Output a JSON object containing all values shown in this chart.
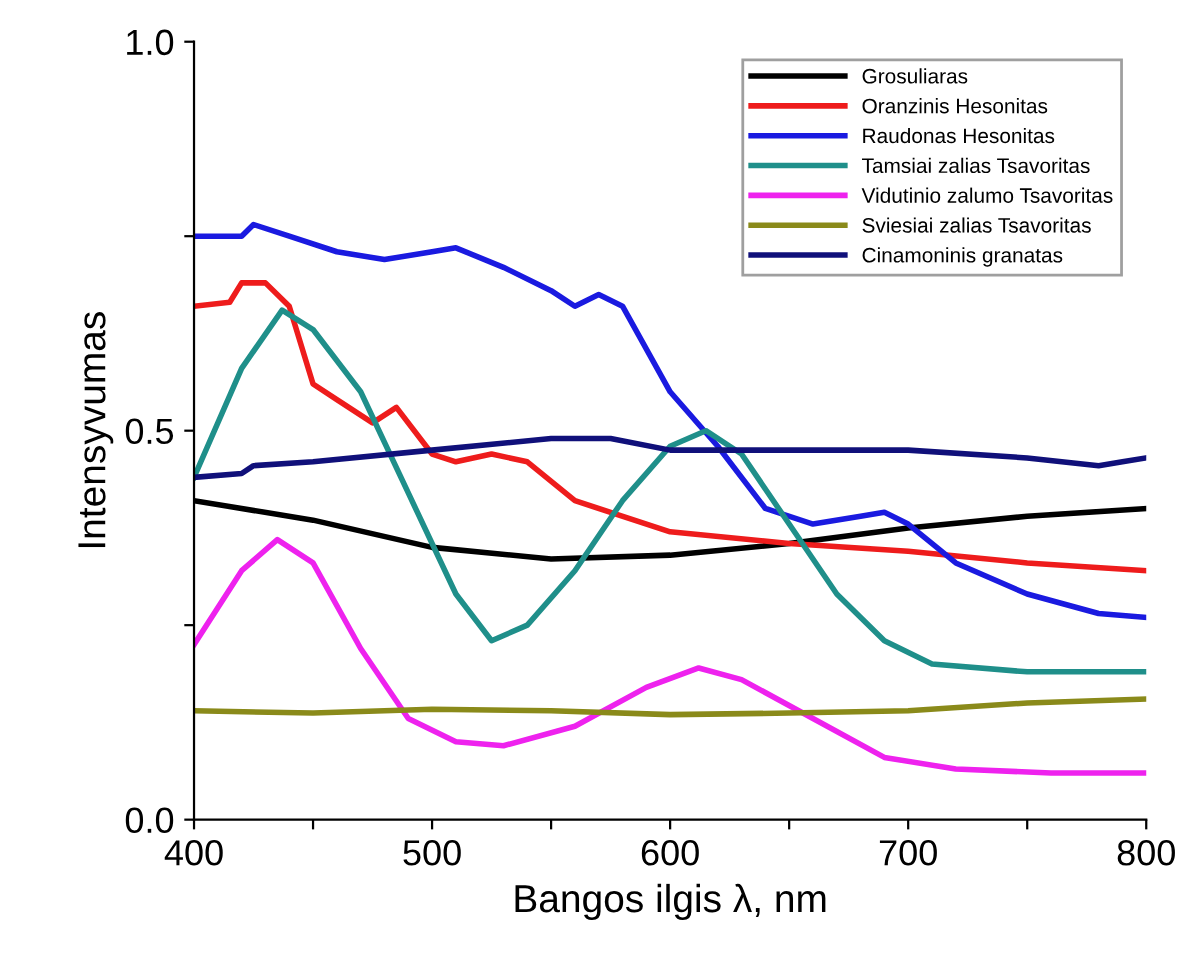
{
  "chart_data": {
    "type": "line",
    "xlabel": "Bangos ilgis λ, nm",
    "ylabel": "Intensyvumas",
    "xlim": [
      400,
      800
    ],
    "xticks": [
      400,
      {
        "value": 450,
        "label": null
      },
      500,
      {
        "value": 550,
        "label": null
      },
      600,
      {
        "value": 650,
        "label": null
      },
      700,
      {
        "value": 750,
        "label": null
      },
      800
    ],
    "ylim": [
      0,
      1
    ],
    "yticks": [
      {
        "value": 0,
        "label": "0.0"
      },
      {
        "value": 0.25,
        "label": null
      },
      {
        "value": 0.5,
        "label": "0.5"
      },
      {
        "value": 0.75,
        "label": null
      },
      {
        "value": 1,
        "label": "1.0"
      }
    ],
    "grid": false,
    "legend": "top right",
    "marker": "none",
    "line_style": "solid",
    "series": [
      {
        "name": "Grosuliaras",
        "color": "#000000",
        "x": [
          400,
          450,
          500,
          550,
          600,
          650,
          700,
          750,
          800
        ],
        "values": [
          0.41,
          0.385,
          0.35,
          0.335,
          0.34,
          0.355,
          0.375,
          0.39,
          0.4
        ]
      },
      {
        "name": "Oranzinis Hesonitas",
        "color": "#ee1c1c",
        "x": [
          400,
          415,
          420,
          430,
          440,
          450,
          460,
          475,
          485,
          500,
          510,
          525,
          540,
          560,
          600,
          650,
          700,
          750,
          800
        ],
        "values": [
          0.66,
          0.665,
          0.69,
          0.69,
          0.66,
          0.56,
          0.54,
          0.51,
          0.53,
          0.47,
          0.46,
          0.47,
          0.46,
          0.41,
          0.37,
          0.355,
          0.345,
          0.33,
          0.32
        ]
      },
      {
        "name": "Raudonas Hesonitas",
        "color": "#1a1ae0",
        "x": [
          400,
          420,
          425,
          440,
          460,
          480,
          500,
          510,
          530,
          550,
          560,
          570,
          580,
          600,
          620,
          640,
          660,
          680,
          690,
          700,
          720,
          750,
          780,
          800
        ],
        "values": [
          0.75,
          0.75,
          0.765,
          0.75,
          0.73,
          0.72,
          0.73,
          0.735,
          0.71,
          0.68,
          0.66,
          0.675,
          0.66,
          0.55,
          0.48,
          0.4,
          0.38,
          0.39,
          0.395,
          0.38,
          0.33,
          0.29,
          0.265,
          0.26
        ]
      },
      {
        "name": "Tamsiai zalias Tsavoritas",
        "color": "#1f8f8a",
        "x": [
          400,
          420,
          437,
          450,
          470,
          490,
          510,
          525,
          540,
          560,
          580,
          600,
          615,
          630,
          650,
          670,
          690,
          710,
          750,
          800
        ],
        "values": [
          0.44,
          0.58,
          0.655,
          0.63,
          0.55,
          0.42,
          0.29,
          0.23,
          0.25,
          0.32,
          0.41,
          0.48,
          0.5,
          0.47,
          0.38,
          0.29,
          0.23,
          0.2,
          0.19,
          0.19
        ]
      },
      {
        "name": "Vidutinio zalumo Tsavoritas",
        "color": "#ee22ee",
        "x": [
          400,
          420,
          435,
          450,
          470,
          490,
          510,
          530,
          560,
          590,
          612,
          630,
          660,
          690,
          720,
          760,
          800
        ],
        "values": [
          0.225,
          0.32,
          0.36,
          0.33,
          0.22,
          0.13,
          0.1,
          0.095,
          0.12,
          0.17,
          0.195,
          0.18,
          0.13,
          0.08,
          0.065,
          0.06,
          0.06
        ]
      },
      {
        "name": "Sviesiai zalias Tsavoritas",
        "color": "#8a8a1a",
        "x": [
          400,
          450,
          500,
          550,
          600,
          650,
          700,
          750,
          800
        ],
        "values": [
          0.14,
          0.137,
          0.142,
          0.14,
          0.135,
          0.137,
          0.14,
          0.15,
          0.155
        ]
      },
      {
        "name": "Cinamoninis granatas",
        "color": "#10107a",
        "x": [
          400,
          420,
          425,
          450,
          500,
          550,
          575,
          600,
          650,
          700,
          750,
          780,
          790,
          800
        ],
        "values": [
          0.44,
          0.445,
          0.455,
          0.46,
          0.475,
          0.49,
          0.49,
          0.475,
          0.475,
          0.475,
          0.465,
          0.455,
          0.46,
          0.465
        ]
      }
    ]
  }
}
